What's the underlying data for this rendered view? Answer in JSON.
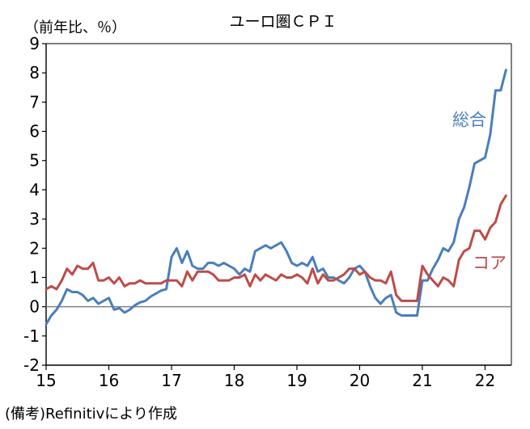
{
  "chart_data": {
    "type": "line",
    "title": "ユーロ圏ＣＰＩ",
    "ylabel": "（前年比、％）",
    "note": "(備考)Refinitivにより作成",
    "ylim": [
      -2,
      9
    ],
    "yticks": [
      -2,
      -1,
      0,
      1,
      2,
      3,
      4,
      5,
      6,
      7,
      8,
      9
    ],
    "xlim": [
      2015.0,
      2022.42
    ],
    "xticks": [
      {
        "label": "15",
        "value": 2015
      },
      {
        "label": "16",
        "value": 2016
      },
      {
        "label": "17",
        "value": 2017
      },
      {
        "label": "18",
        "value": 2018
      },
      {
        "label": "19",
        "value": 2019
      },
      {
        "label": "20",
        "value": 2020
      },
      {
        "label": "21",
        "value": 2021
      },
      {
        "label": "22",
        "value": 2022
      }
    ],
    "x_start": "2015-01",
    "frequency": "monthly",
    "series": [
      {
        "name": "総合",
        "color": "#4a7ebb",
        "values": [
          -0.6,
          -0.3,
          -0.1,
          0.2,
          0.6,
          0.5,
          0.5,
          0.4,
          0.2,
          0.3,
          0.1,
          0.2,
          0.3,
          -0.1,
          -0.05,
          -0.2,
          -0.1,
          0.05,
          0.15,
          0.2,
          0.35,
          0.45,
          0.55,
          0.6,
          1.7,
          2.0,
          1.5,
          1.9,
          1.4,
          1.3,
          1.3,
          1.5,
          1.5,
          1.4,
          1.5,
          1.4,
          1.3,
          1.1,
          1.3,
          1.2,
          1.9,
          2.0,
          2.1,
          2.0,
          2.1,
          2.2,
          1.9,
          1.5,
          1.4,
          1.5,
          1.4,
          1.7,
          1.2,
          1.3,
          1.0,
          1.0,
          0.9,
          0.8,
          1.0,
          1.3,
          1.4,
          1.2,
          0.7,
          0.3,
          0.1,
          0.3,
          0.4,
          -0.2,
          -0.3,
          -0.3,
          -0.3,
          -0.3,
          0.9,
          0.9,
          1.3,
          1.6,
          2.0,
          1.9,
          2.2,
          3.0,
          3.4,
          4.1,
          4.9,
          5.0,
          5.1,
          5.9,
          7.4,
          7.4,
          8.1
        ]
      },
      {
        "name": "コア",
        "color": "#be4b48",
        "values": [
          0.6,
          0.7,
          0.6,
          0.9,
          1.3,
          1.1,
          1.4,
          1.3,
          1.3,
          1.5,
          0.9,
          0.9,
          1.0,
          0.8,
          1.0,
          0.7,
          0.8,
          0.8,
          0.9,
          0.8,
          0.8,
          0.8,
          0.8,
          0.9,
          0.9,
          0.9,
          0.7,
          1.2,
          0.9,
          1.2,
          1.2,
          1.2,
          1.1,
          0.9,
          0.9,
          0.9,
          1.0,
          1.0,
          1.1,
          0.7,
          1.1,
          0.9,
          1.1,
          1.0,
          0.9,
          1.1,
          1.0,
          1.0,
          1.1,
          1.0,
          0.8,
          1.3,
          0.8,
          1.1,
          0.9,
          0.9,
          1.0,
          1.1,
          1.3,
          1.3,
          1.1,
          1.2,
          1.0,
          0.9,
          0.9,
          0.8,
          1.2,
          0.4,
          0.2,
          0.2,
          0.2,
          0.2,
          1.4,
          1.1,
          0.9,
          0.7,
          1.0,
          0.9,
          0.7,
          1.6,
          1.9,
          2.0,
          2.6,
          2.6,
          2.3,
          2.7,
          2.9,
          3.5,
          3.8
        ]
      }
    ],
    "annotations": [
      {
        "text": "総合",
        "series": "総合"
      },
      {
        "text": "コア",
        "series": "コア"
      }
    ],
    "grid": false,
    "zero_line": true
  }
}
